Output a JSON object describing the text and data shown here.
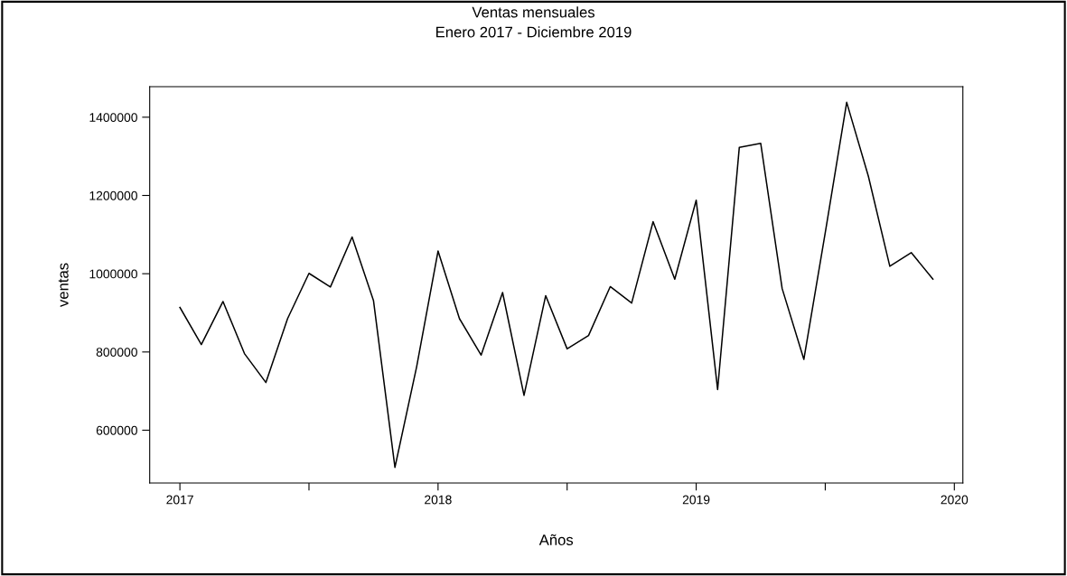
{
  "chart_data": {
    "type": "line",
    "title": "Ventas mensuales",
    "subtitle": "Enero 2017 - Diciembre 2019",
    "xlabel": "Años",
    "ylabel": "ventas",
    "x": [
      2017.0,
      2017.083,
      2017.167,
      2017.25,
      2017.333,
      2017.417,
      2017.5,
      2017.583,
      2017.667,
      2017.75,
      2017.833,
      2017.917,
      2018.0,
      2018.083,
      2018.167,
      2018.25,
      2018.333,
      2018.417,
      2018.5,
      2018.583,
      2018.667,
      2018.75,
      2018.833,
      2018.917,
      2019.0,
      2019.083,
      2019.167,
      2019.25,
      2019.333,
      2019.417,
      2019.5,
      2019.583,
      2019.667,
      2019.75,
      2019.833,
      2019.917
    ],
    "series": [
      {
        "color": "#000000",
        "values": [
          914000,
          819000,
          929000,
          796000,
          722000,
          885000,
          1001000,
          966000,
          1094000,
          931000,
          505000,
          762000,
          1058000,
          885000,
          792000,
          952000,
          689000,
          944000,
          808000,
          842000,
          967000,
          925000,
          1133000,
          986000,
          1188000,
          704000,
          1323000,
          1333000,
          962000,
          781000,
          1105000,
          1438000,
          1249000,
          1019000,
          1054000,
          986000
        ]
      }
    ],
    "xlim": [
      2016.883,
      2020.033
    ],
    "ylim": [
      465000,
      1478000
    ],
    "xticks": [
      2017,
      {
        "value": 2017.5,
        "label": null
      },
      2018,
      {
        "value": 2018.5,
        "label": null
      },
      2019,
      {
        "value": 2019.5,
        "label": null
      },
      2020
    ],
    "yticks": [
      600000,
      800000,
      1000000,
      1200000,
      1400000
    ],
    "grid": false,
    "marker": "none",
    "line_style": "solid"
  }
}
